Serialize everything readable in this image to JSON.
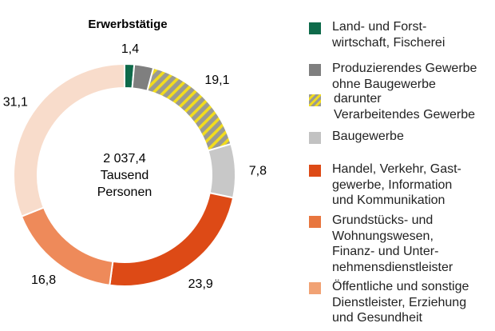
{
  "chart_data": {
    "type": "pie",
    "subtype": "donut",
    "title": "Erwerbstätige",
    "center_label": [
      "2 037,4",
      "Tausend",
      "Personen"
    ],
    "total": "2 037,4",
    "total_unit": "Tausend Personen",
    "unit": "%",
    "start": "top",
    "direction": "clockwise",
    "segments": [
      {
        "key": "land",
        "name": "Land- und Forstwirtschaft, Fischerei",
        "value": 1.4,
        "label": "1,4",
        "color": "#0e6a4a"
      },
      {
        "key": "prod_ohne_verarb",
        "name": "Produzierendes Gewerbe ohne Baugewerbe (ohne Verarbeitendes Gewerbe)",
        "value": 2.8,
        "label": "",
        "color": "#7f7f7f"
      },
      {
        "key": "verarb",
        "name": "darunter Verarbeitendes Gewerbe",
        "value": 16.3,
        "label": "",
        "color": "#9a9a8a",
        "pattern": "hatch-yellow"
      },
      {
        "key": "bau",
        "name": "Baugewerbe",
        "value": 7.8,
        "label": "7,8",
        "color": "#c8c8c8"
      },
      {
        "key": "handel",
        "name": "Handel, Verkehr, Gastgewerbe, Information und Kommunikation",
        "value": 23.9,
        "label": "23,9",
        "color": "#dd4a16"
      },
      {
        "key": "grund",
        "name": "Grundstücks- und Wohnungswesen, Finanz- und Unternehmensdienstleister",
        "value": 16.8,
        "label": "16,8",
        "color": "#ee8a5a"
      },
      {
        "key": "oeff",
        "name": "Öffentliche und sonstige Dienstleister, Erziehung und Gesundheit",
        "value": 31.1,
        "label": "31,1",
        "color": "#f8dccb"
      }
    ],
    "group_labels": [
      {
        "name": "Produzierendes Gewerbe ohne Baugewerbe",
        "value": 19.1,
        "label": "19,1"
      }
    ],
    "legend_position": "right"
  },
  "legend": [
    {
      "text": "Land- und Forst-\nwirtschaft, Fischerei",
      "color": "#0e6a4a",
      "pattern": "",
      "indent": false
    },
    {
      "text": "Produzierendes Gewerbe\nohne Baugewerbe",
      "color": "#7f7f7f",
      "pattern": "",
      "indent": false
    },
    {
      "text": "darunter\nVerarbeitendes Gewerbe",
      "color": "#9a9a8a",
      "pattern": "hatch-yellow",
      "indent": true
    },
    {
      "text": "Baugewerbe",
      "color": "#c2c2c2",
      "pattern": "",
      "indent": false
    },
    {
      "text": "Handel, Verkehr, Gast-\ngewerbe, Information\nund Kommunikation",
      "color": "#dd4a16",
      "pattern": "",
      "indent": false
    },
    {
      "text": "Grundstücks- und\nWohnungswesen,\nFinanz- und Unter-\nnehmensdienstleister",
      "color": "#e8763e",
      "pattern": "",
      "indent": false
    },
    {
      "text": "Öffentliche und sonstige\nDienstleister, Erziehung\nund Gesundheit",
      "color": "#f1a274",
      "pattern": "",
      "indent": false
    }
  ],
  "colors": {
    "hatch_stripe": "#f2dc1e",
    "hatch_base": "#9a9a92",
    "separator": "#ffffff"
  }
}
